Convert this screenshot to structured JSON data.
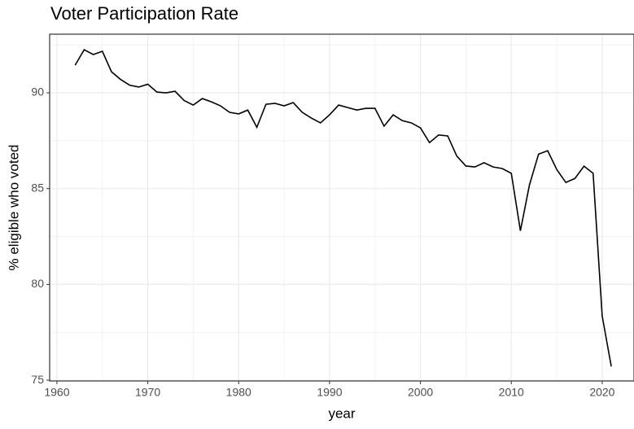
{
  "chart_data": {
    "type": "line",
    "title": "Voter Participation Rate",
    "x_label": "year",
    "y_label": "% eligible who voted",
    "x": [
      1962,
      1963,
      1964,
      1965,
      1966,
      1967,
      1968,
      1969,
      1970,
      1971,
      1972,
      1973,
      1974,
      1975,
      1976,
      1977,
      1978,
      1979,
      1980,
      1981,
      1982,
      1983,
      1984,
      1985,
      1986,
      1987,
      1988,
      1989,
      1990,
      1991,
      1992,
      1993,
      1994,
      1995,
      1996,
      1997,
      1998,
      1999,
      2000,
      2001,
      2002,
      2003,
      2004,
      2005,
      2006,
      2007,
      2008,
      2009,
      2010,
      2011,
      2012,
      2013,
      2014,
      2015,
      2016,
      2017,
      2018,
      2019,
      2020,
      2021
    ],
    "series": [
      {
        "color": "#000000",
        "values": [
          91.44,
          92.25,
          92.0,
          92.17,
          91.1,
          90.7,
          90.4,
          90.3,
          90.45,
          90.04,
          90.0,
          90.08,
          89.6,
          89.36,
          89.7,
          89.53,
          89.32,
          88.98,
          88.9,
          89.1,
          88.2,
          89.4,
          89.45,
          89.32,
          89.49,
          88.98,
          88.68,
          88.43,
          88.85,
          89.36,
          89.23,
          89.1,
          89.19,
          89.19,
          88.26,
          88.85,
          88.55,
          88.43,
          88.17,
          87.4,
          87.8,
          87.75,
          86.7,
          86.18,
          86.13,
          86.35,
          86.13,
          86.05,
          85.8,
          82.8,
          85.2,
          86.8,
          86.98,
          86.0,
          85.32,
          85.53,
          86.17,
          85.8,
          78.35,
          75.72
        ]
      }
    ],
    "xlim": [
      1959.2,
      2023.5
    ],
    "xticks": [
      1960,
      1970,
      1980,
      1990,
      2000,
      2010,
      2020
    ],
    "ylim": [
      74.96,
      93.06
    ],
    "yticks": [
      75,
      80,
      85,
      90
    ],
    "grid": true
  }
}
